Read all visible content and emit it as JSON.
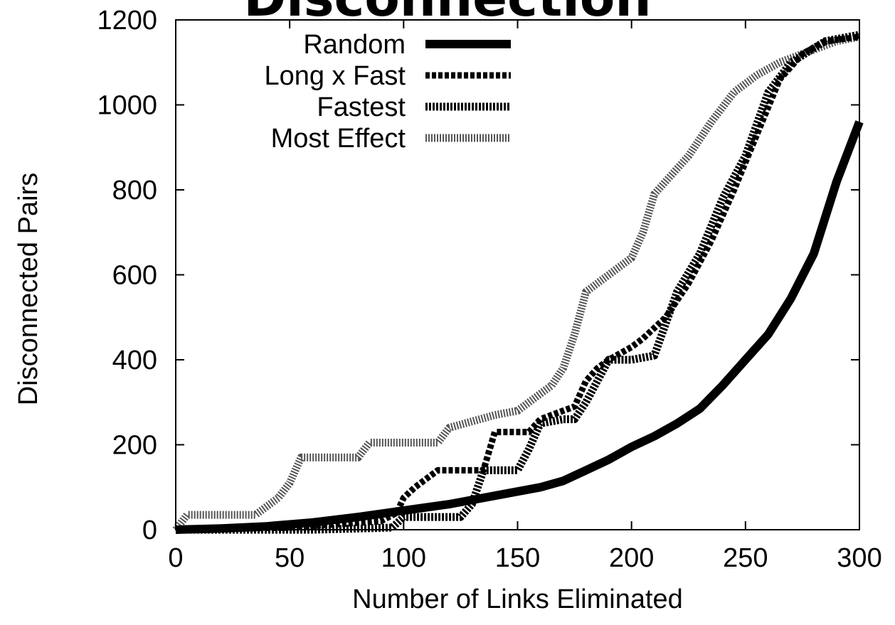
{
  "page": {
    "title": "Disconnection"
  },
  "chart_data": {
    "type": "line",
    "title": "",
    "xlabel": "Number of Links Eliminated",
    "ylabel": "Disconnected Pairs",
    "xlim": [
      0,
      300
    ],
    "ylim": [
      0,
      1200
    ],
    "xticks": [
      0,
      50,
      100,
      150,
      200,
      250,
      300
    ],
    "yticks": [
      0,
      200,
      400,
      600,
      800,
      1000,
      1200
    ],
    "grid": false,
    "legend_position": "top-left",
    "series": [
      {
        "name": "Random",
        "style": "solid-thick",
        "x": [
          0,
          20,
          40,
          60,
          80,
          100,
          120,
          140,
          160,
          170,
          180,
          190,
          200,
          210,
          220,
          230,
          240,
          250,
          260,
          270,
          280,
          290,
          300
        ],
        "y": [
          0,
          3,
          8,
          17,
          30,
          45,
          60,
          80,
          100,
          115,
          140,
          165,
          195,
          220,
          250,
          285,
          340,
          400,
          460,
          545,
          650,
          820,
          960
        ]
      },
      {
        "name": "Long x Fast",
        "style": "dashed",
        "x": [
          0,
          50,
          90,
          97,
          100,
          105,
          110,
          115,
          135,
          140,
          155,
          160,
          175,
          180,
          185,
          190,
          200,
          205,
          215,
          225,
          235,
          245,
          255,
          265,
          275,
          285,
          300
        ],
        "y": [
          0,
          5,
          20,
          40,
          75,
          100,
          120,
          140,
          140,
          230,
          230,
          260,
          290,
          350,
          380,
          400,
          430,
          450,
          500,
          580,
          680,
          800,
          930,
          1060,
          1120,
          1150,
          1160
        ]
      },
      {
        "name": "Fastest",
        "style": "dotted-dense",
        "x": [
          0,
          60,
          95,
          100,
          125,
          130,
          135,
          150,
          155,
          160,
          170,
          175,
          180,
          185,
          190,
          200,
          210,
          220,
          230,
          240,
          250,
          260,
          270,
          285,
          300
        ],
        "y": [
          0,
          0,
          5,
          30,
          30,
          60,
          140,
          140,
          190,
          250,
          260,
          260,
          300,
          350,
          400,
          400,
          410,
          560,
          650,
          780,
          880,
          1030,
          1100,
          1150,
          1165
        ]
      },
      {
        "name": "Most Effect",
        "style": "hatched-light",
        "x": [
          0,
          5,
          35,
          45,
          50,
          55,
          80,
          85,
          115,
          120,
          140,
          150,
          160,
          165,
          170,
          175,
          180,
          190,
          200,
          205,
          210,
          215,
          225,
          235,
          245,
          255,
          265,
          275,
          290,
          300
        ],
        "y": [
          0,
          35,
          35,
          75,
          110,
          170,
          170,
          205,
          205,
          240,
          270,
          280,
          320,
          340,
          380,
          460,
          560,
          600,
          640,
          700,
          790,
          820,
          880,
          960,
          1030,
          1070,
          1100,
          1120,
          1150,
          1160
        ]
      }
    ]
  }
}
